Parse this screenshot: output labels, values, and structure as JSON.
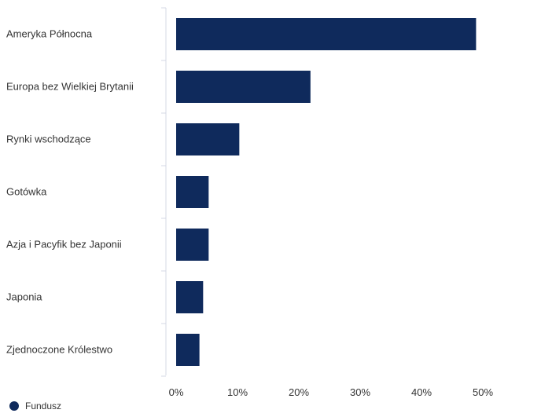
{
  "chart_data": {
    "type": "bar",
    "orientation": "horizontal",
    "categories": [
      "Ameryka Północna",
      "Europa bez Wielkiej Brytanii",
      "Rynki wschodzące",
      "Gotówka",
      "Azja i Pacyfik bez Japonii",
      "Japonia",
      "Zjednoczone Królestwo"
    ],
    "series": [
      {
        "name": "Fundusz",
        "values": [
          48.9,
          21.9,
          10.3,
          5.3,
          5.3,
          4.4,
          3.8
        ],
        "color": "#0f2a5c"
      }
    ],
    "x_ticks": [
      {
        "value": 0,
        "label": "0%"
      },
      {
        "value": 10,
        "label": "10%"
      },
      {
        "value": 20,
        "label": "20%"
      },
      {
        "value": 30,
        "label": "30%"
      },
      {
        "value": 40,
        "label": "40%"
      },
      {
        "value": 50,
        "label": "50%"
      }
    ],
    "xlim": [
      0,
      60
    ],
    "grid": false,
    "legend_position": "bottom-left"
  },
  "legend": {
    "label": "Fundusz"
  },
  "colors": {
    "bar": "#0f2a5c",
    "axis": "#d6d9e6",
    "text": "#333333"
  }
}
